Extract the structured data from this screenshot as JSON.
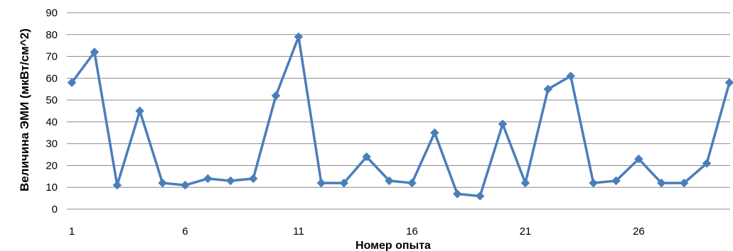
{
  "chart_data": {
    "type": "line",
    "xlabel": "Номер опыта",
    "ylabel": "Величина ЭМИ (мкВт/см^2)",
    "ylim": [
      0,
      90
    ],
    "yticks": [
      "0",
      "10",
      "20",
      "30",
      "40",
      "50",
      "60",
      "70",
      "80",
      "90"
    ],
    "xticks": [
      {
        "value": 1,
        "label": "1"
      },
      {
        "value": 6,
        "label": "6"
      },
      {
        "value": 11,
        "label": "11"
      },
      {
        "value": 16,
        "label": "16"
      },
      {
        "value": 21,
        "label": "21"
      },
      {
        "value": 26,
        "label": "26"
      }
    ],
    "grid": "horizontal",
    "legend": "none",
    "series": [
      {
        "color": "#4a7ebb",
        "marker": "diamond",
        "x": [
          1,
          2,
          3,
          4,
          5,
          6,
          7,
          8,
          9,
          10,
          11,
          12,
          13,
          14,
          15,
          16,
          17,
          18,
          19,
          20,
          21,
          22,
          23,
          24,
          25,
          26,
          27,
          28,
          29,
          30
        ],
        "values": [
          58,
          72,
          11,
          45,
          12,
          11,
          14,
          13,
          14,
          52,
          79,
          12,
          12,
          24,
          13,
          12,
          35,
          7,
          6,
          39,
          12,
          55,
          61,
          12,
          13,
          23,
          12,
          12,
          21,
          58
        ]
      }
    ]
  }
}
